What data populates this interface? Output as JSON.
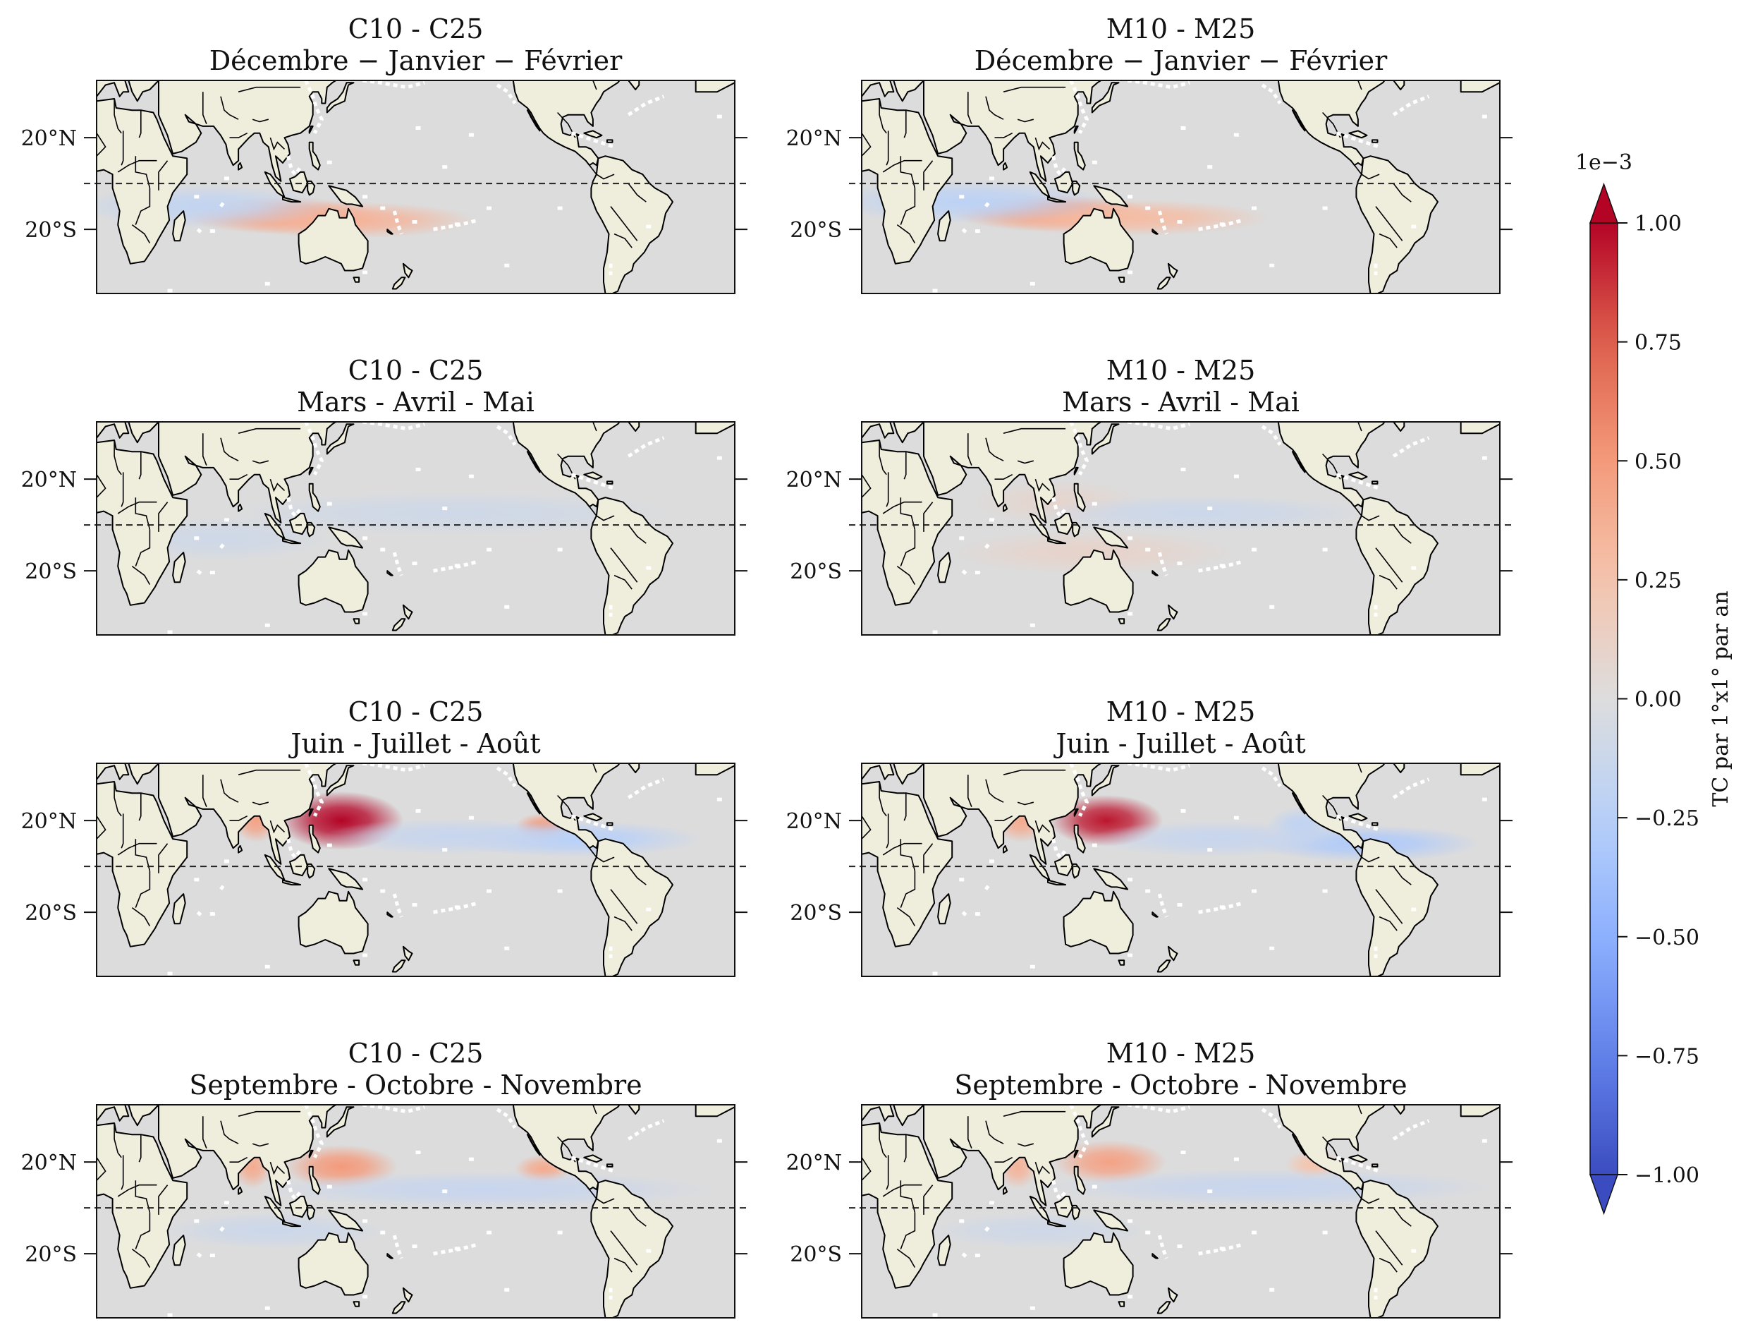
{
  "chart_data": {
    "type": "heatmap",
    "description": "Differences in tropical cyclone density by season",
    "ytick_labels": [
      "20°N",
      "20°S"
    ],
    "yticks_deg": [
      20,
      -20
    ],
    "reference_line_lat": 0,
    "panels": [
      {
        "id": "c-djf",
        "title": "C10 - C25",
        "subtitle": "Décembre − Janvier − Février",
        "hotspots": [
          {
            "lon": 105,
            "lat": -14,
            "value": 0.45,
            "sx": 35,
            "sy": 5
          },
          {
            "lon": 142,
            "lat": -16,
            "value": 0.35,
            "sx": 45,
            "sy": 5
          },
          {
            "lon": 60,
            "lat": -10,
            "value": -0.18,
            "sx": 45,
            "sy": 6
          }
        ]
      },
      {
        "id": "m-djf",
        "title": "M10 - M25",
        "subtitle": "Décembre − Janvier − Février",
        "hotspots": [
          {
            "lon": 108,
            "lat": -13,
            "value": 0.5,
            "sx": 35,
            "sy": 5
          },
          {
            "lon": 150,
            "lat": -15,
            "value": 0.3,
            "sx": 50,
            "sy": 5
          },
          {
            "lon": 60,
            "lat": -8,
            "value": -0.22,
            "sx": 50,
            "sy": 6
          }
        ]
      },
      {
        "id": "c-mam",
        "title": "C10 - C25",
        "subtitle": "Mars - Avril - Mai",
        "hotspots": [
          {
            "lon": 200,
            "lat": 5,
            "value": -0.1,
            "sx": 80,
            "sy": 6
          },
          {
            "lon": 70,
            "lat": -6,
            "value": -0.1,
            "sx": 40,
            "sy": 6
          }
        ]
      },
      {
        "id": "m-mam",
        "title": "M10 - M25",
        "subtitle": "Mars - Avril - Mai",
        "hotspots": [
          {
            "lon": 130,
            "lat": -12,
            "value": 0.1,
            "sx": 50,
            "sy": 6
          },
          {
            "lon": 110,
            "lat": 10,
            "value": 0.08,
            "sx": 30,
            "sy": 6
          },
          {
            "lon": 190,
            "lat": 5,
            "value": -0.12,
            "sx": 60,
            "sy": 5
          }
        ]
      },
      {
        "id": "c-jja",
        "title": "C10 - C25",
        "subtitle": "Juin - Juillet - Août",
        "hotspots": [
          {
            "lon": 138,
            "lat": 20,
            "value": 1.0,
            "sx": 22,
            "sy": 8
          },
          {
            "lon": 90,
            "lat": 20,
            "value": 0.45,
            "sx": 8,
            "sy": 6
          },
          {
            "lon": 252,
            "lat": 17,
            "value": 0.5,
            "sx": 10,
            "sy": 4
          },
          {
            "lon": 270,
            "lat": 12,
            "value": -0.25,
            "sx": 45,
            "sy": 5
          },
          {
            "lon": 200,
            "lat": 13,
            "value": -0.15,
            "sx": 45,
            "sy": 5
          }
        ]
      },
      {
        "id": "m-jja",
        "title": "M10 - M25",
        "subtitle": "Juin - Juillet - Août",
        "hotspots": [
          {
            "lon": 138,
            "lat": 20,
            "value": 0.95,
            "sx": 20,
            "sy": 7
          },
          {
            "lon": 90,
            "lat": 20,
            "value": 0.4,
            "sx": 10,
            "sy": 6
          },
          {
            "lon": 285,
            "lat": 10,
            "value": -0.3,
            "sx": 40,
            "sy": 5
          },
          {
            "lon": 248,
            "lat": 18,
            "value": -0.2,
            "sx": 12,
            "sy": 5
          },
          {
            "lon": 200,
            "lat": 12,
            "value": -0.15,
            "sx": 45,
            "sy": 5
          }
        ]
      },
      {
        "id": "c-son",
        "title": "C10 - C25",
        "subtitle": "Septembre - Octobre - Novembre",
        "hotspots": [
          {
            "lon": 138,
            "lat": 18,
            "value": 0.5,
            "sx": 20,
            "sy": 6
          },
          {
            "lon": 88,
            "lat": 18,
            "value": 0.4,
            "sx": 7,
            "sy": 6
          },
          {
            "lon": 252,
            "lat": 17,
            "value": 0.4,
            "sx": 10,
            "sy": 4
          },
          {
            "lon": 220,
            "lat": 8,
            "value": -0.15,
            "sx": 80,
            "sy": 5
          },
          {
            "lon": 100,
            "lat": -10,
            "value": -0.12,
            "sx": 40,
            "sy": 5
          }
        ]
      },
      {
        "id": "m-son",
        "title": "M10 - M25",
        "subtitle": "Septembre - Octobre - Novembre",
        "hotspots": [
          {
            "lon": 140,
            "lat": 20,
            "value": 0.45,
            "sx": 20,
            "sy": 6
          },
          {
            "lon": 88,
            "lat": 18,
            "value": 0.35,
            "sx": 7,
            "sy": 6
          },
          {
            "lon": 255,
            "lat": 19,
            "value": 0.25,
            "sx": 10,
            "sy": 4
          },
          {
            "lon": 230,
            "lat": 9,
            "value": -0.15,
            "sx": 80,
            "sy": 5
          },
          {
            "lon": 100,
            "lat": -10,
            "value": -0.1,
            "sx": 40,
            "sy": 5
          }
        ]
      }
    ],
    "colorbar": {
      "cmap": "coolwarm",
      "min": -1.0,
      "max": 1.0,
      "ticks": [
        -1.0,
        -0.75,
        -0.5,
        -0.25,
        0.0,
        0.25,
        0.5,
        0.75,
        1.0
      ],
      "tick_labels": [
        "−1.00",
        "−0.75",
        "−0.50",
        "−0.25",
        "0.00",
        "0.25",
        "0.50",
        "0.75",
        "1.00"
      ],
      "offset_label": "1e−3",
      "label": "TC par 1°x1° par an",
      "extend": "both"
    },
    "colors": {
      "land": "#efeddc",
      "ocean_zero": "#dcdcdc",
      "coastline": "#000000",
      "mask": "#ffffff"
    }
  }
}
